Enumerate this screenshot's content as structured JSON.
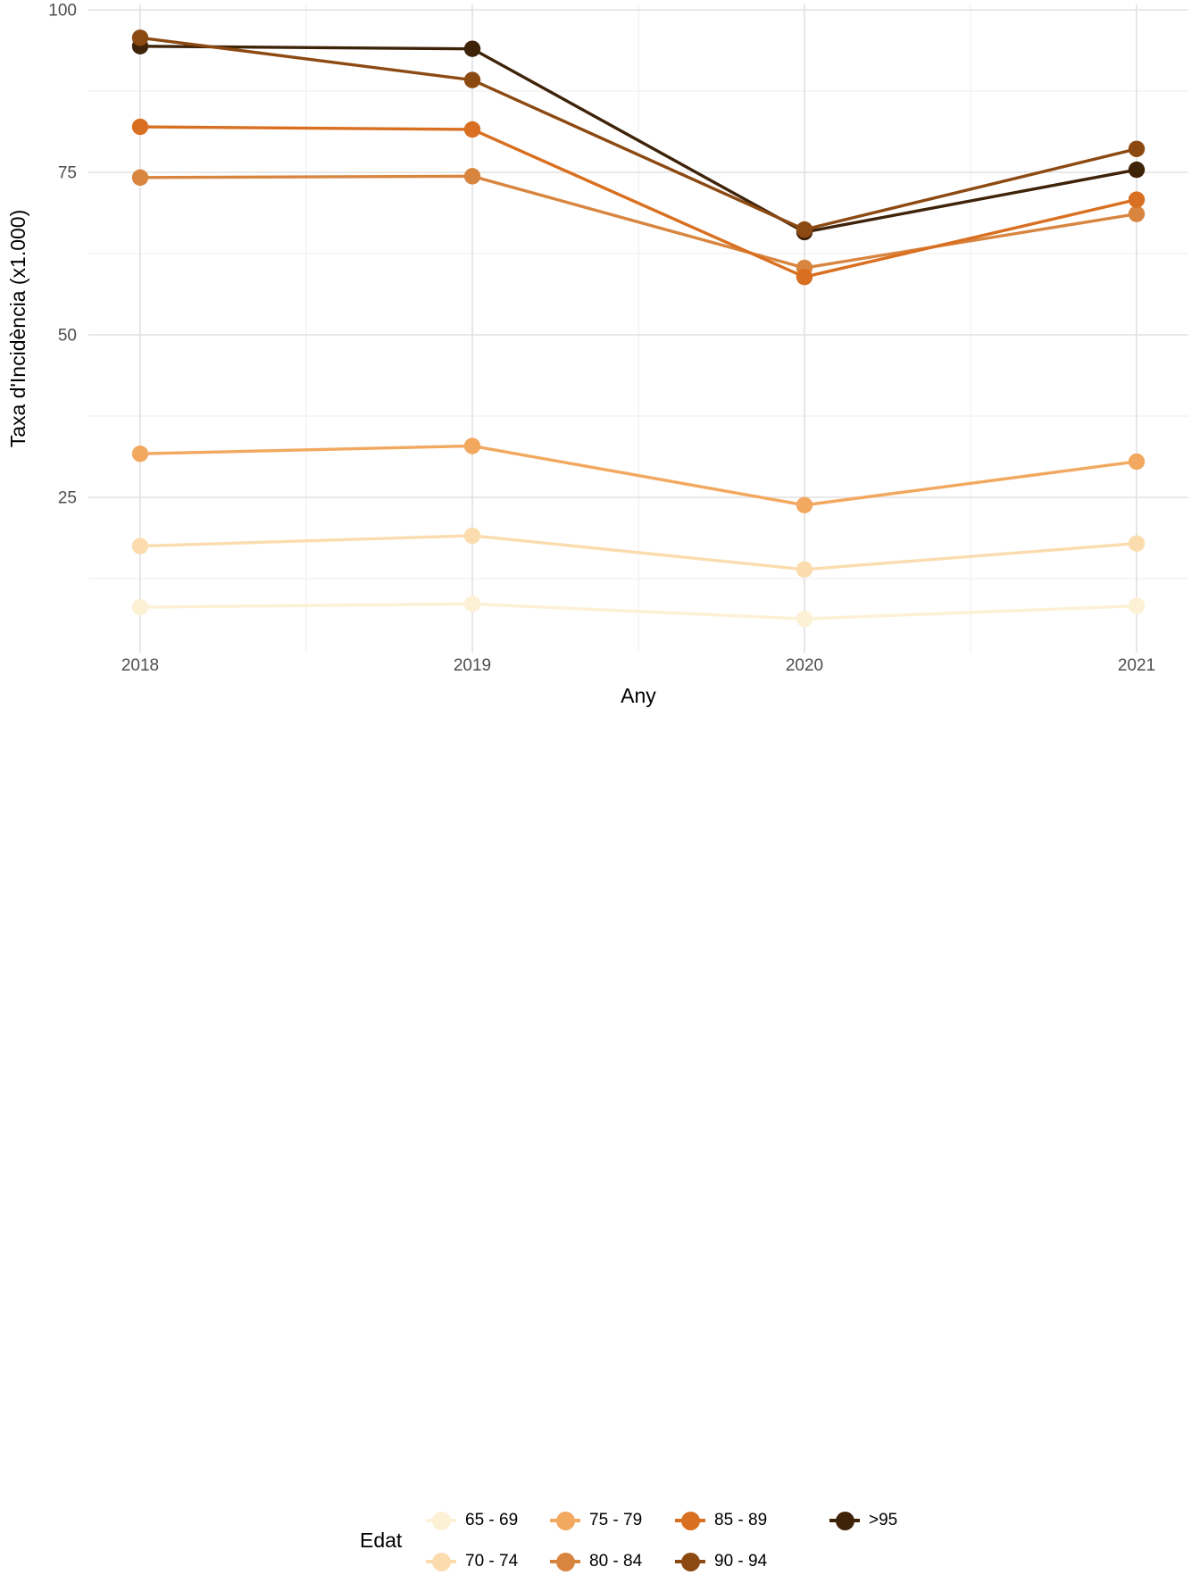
{
  "chart_data": {
    "type": "line",
    "title": "",
    "xlabel": "Any",
    "ylabel": "Taxa d'Incidència (x1.000)",
    "x": [
      2018,
      2019,
      2020,
      2021
    ],
    "x_tick_labels": [
      "2018",
      "2019",
      "2020",
      "2021"
    ],
    "y_ticks": [
      25,
      50,
      75,
      100
    ],
    "y_tick_labels": [
      "25",
      "50",
      "75",
      "100"
    ],
    "y_minor_ticks": [
      12.5,
      37.5,
      62.5,
      87.5
    ],
    "x_minor": [
      2018.5,
      2019.5,
      2020.5
    ],
    "ylim": [
      1,
      101
    ],
    "grid": "on",
    "legend_position": "bottom",
    "legend_title": "Edat",
    "series": [
      {
        "name": "65 - 69",
        "color": "#fcf1d4",
        "values": [
          8.1,
          8.6,
          6.3,
          8.3
        ]
      },
      {
        "name": "70 - 74",
        "color": "#fbdcae",
        "values": [
          17.5,
          19.1,
          13.9,
          17.9
        ]
      },
      {
        "name": "75 - 79",
        "color": "#f2a85f",
        "values": [
          31.7,
          32.9,
          23.8,
          30.5
        ]
      },
      {
        "name": "80 - 84",
        "color": "#d8853f",
        "values": [
          74.2,
          74.4,
          60.3,
          68.6
        ]
      },
      {
        "name": "85 - 89",
        "color": "#d96f20",
        "values": [
          82.0,
          81.6,
          58.9,
          70.8
        ]
      },
      {
        "name": "90 - 94",
        "color": "#8c4a12",
        "values": [
          95.7,
          89.2,
          66.2,
          78.6
        ]
      },
      {
        "name": ">95",
        "color": "#3f2309",
        "values": [
          94.4,
          94.0,
          65.8,
          75.4
        ]
      }
    ]
  },
  "colors": {
    "grid_major": "#e4e4e4",
    "grid_minor": "#f1f1f1",
    "tick_text": "#4d4d4d",
    "axis_title_text": "#000000",
    "background": "#ffffff"
  }
}
